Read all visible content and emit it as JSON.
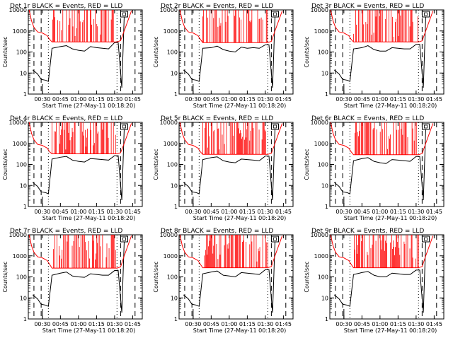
{
  "figure": {
    "colors": {
      "events": "#000000",
      "lld": "#ff0000",
      "background": "#ffffff",
      "axes": "#000000"
    },
    "x_tick_labels": [
      "00:30",
      "00:45",
      "01:00",
      "01:15",
      "01:30",
      "01:45"
    ],
    "y_tick_labels": [
      "1",
      "10",
      "100",
      "1000",
      "10000"
    ],
    "ylabel": "Counts/sec",
    "xlabel": "Start Time (27-May-11 00:18:20)",
    "icon": "attenuator-box-icon"
  },
  "chart_data": [
    {
      "type": "line",
      "title": "Det 1r BLACK = Events, RED = LLD",
      "xlabel": "Start Time (27-May-11 00:18:20)",
      "ylabel": "Counts/sec",
      "yscale": "log",
      "ylim": [
        1,
        10000
      ],
      "xlim_minutes": [
        18.33,
        113
      ],
      "xticks_minutes": [
        30,
        45,
        60,
        75,
        90,
        105
      ],
      "series": [
        {
          "name": "Events",
          "color": "black",
          "x_minutes": [
            22,
            26,
            29,
            33,
            35,
            38,
            45,
            50,
            55,
            60,
            65,
            70,
            75,
            80,
            85,
            90,
            93,
            96,
            98,
            100
          ],
          "values": [
            14,
            9,
            5,
            4.5,
            4,
            150,
            180,
            200,
            140,
            120,
            110,
            180,
            160,
            150,
            140,
            280,
            280,
            2,
            5000,
            9000
          ]
        },
        {
          "name": "LLD",
          "color": "red",
          "x_minutes": [
            19,
            21,
            23,
            26,
            30,
            34,
            36,
            38,
            45,
            60,
            75,
            90,
            92,
            95,
            98,
            101,
            104
          ],
          "values": [
            10000,
            3000,
            1500,
            900,
            800,
            600,
            400,
            300,
            300,
            300,
            300,
            300,
            300,
            350,
            1000,
            3000,
            9000
          ],
          "spike_peak": 10000
        }
      ],
      "vlines_dashed_minutes": [
        23,
        29,
        95,
        107
      ],
      "vlines_dotted_minutes": [
        35,
        92
      ]
    },
    {
      "type": "line",
      "title": "Det 2r BLACK = Events, RED = LLD",
      "xlabel": "Start Time (27-May-11 00:18:20)",
      "ylabel": "Counts/sec",
      "yscale": "log",
      "ylim": [
        1,
        10000
      ],
      "xlim_minutes": [
        18.33,
        113
      ],
      "xticks_minutes": [
        30,
        45,
        60,
        75,
        90,
        105
      ],
      "series": [
        {
          "name": "Events",
          "color": "black",
          "x_minutes": [
            22,
            26,
            29,
            33,
            35,
            38,
            45,
            50,
            55,
            60,
            65,
            70,
            75,
            80,
            85,
            90,
            93,
            96,
            98,
            100
          ],
          "values": [
            14,
            9,
            5,
            4.5,
            4,
            150,
            160,
            190,
            130,
            110,
            100,
            170,
            150,
            160,
            150,
            220,
            220,
            2,
            5000,
            9000
          ]
        },
        {
          "name": "LLD",
          "color": "red",
          "x_minutes": [
            19,
            21,
            23,
            26,
            30,
            34,
            36,
            38,
            45,
            60,
            75,
            90,
            92,
            95,
            98,
            101,
            104
          ],
          "values": [
            10000,
            3000,
            1500,
            900,
            800,
            600,
            400,
            280,
            280,
            280,
            280,
            280,
            280,
            320,
            1000,
            3000,
            9000
          ],
          "spike_peak": 10000
        }
      ],
      "vlines_dashed_minutes": [
        23,
        29,
        95,
        107
      ],
      "vlines_dotted_minutes": [
        35,
        92
      ]
    },
    {
      "type": "line",
      "title": "Det 3r BLACK = Events, RED = LLD",
      "xlabel": "Start Time (27-May-11 00:18:20)",
      "ylabel": "Counts/sec",
      "yscale": "log",
      "ylim": [
        1,
        10000
      ],
      "xlim_minutes": [
        18.33,
        113
      ],
      "xticks_minutes": [
        30,
        45,
        60,
        75,
        90,
        105
      ],
      "series": [
        {
          "name": "Events",
          "color": "black",
          "x_minutes": [
            22,
            26,
            29,
            33,
            35,
            38,
            45,
            50,
            55,
            60,
            65,
            70,
            75,
            80,
            85,
            90,
            93,
            96,
            98,
            100
          ],
          "values": [
            14,
            9,
            5,
            4.5,
            4,
            140,
            160,
            200,
            130,
            110,
            110,
            160,
            150,
            140,
            140,
            230,
            230,
            2,
            5000,
            9000
          ]
        },
        {
          "name": "LLD",
          "color": "red",
          "x_minutes": [
            19,
            21,
            23,
            26,
            30,
            34,
            36,
            38,
            45,
            60,
            75,
            90,
            92,
            95,
            98,
            101,
            104
          ],
          "values": [
            10000,
            3000,
            1500,
            900,
            800,
            600,
            400,
            300,
            300,
            300,
            300,
            300,
            300,
            340,
            1000,
            3000,
            9000
          ],
          "spike_peak": 10000
        }
      ],
      "vlines_dashed_minutes": [
        23,
        29,
        95,
        107
      ],
      "vlines_dotted_minutes": [
        35,
        92
      ]
    },
    {
      "type": "line",
      "title": "Det 4r BLACK = Events, RED = LLD",
      "xlabel": "Start Time (27-May-11 00:18:20)",
      "ylabel": "Counts/sec",
      "yscale": "log",
      "ylim": [
        1,
        10000
      ],
      "xlim_minutes": [
        18.33,
        113
      ],
      "xticks_minutes": [
        30,
        45,
        60,
        75,
        90,
        105
      ],
      "series": [
        {
          "name": "Events",
          "color": "black",
          "x_minutes": [
            22,
            26,
            29,
            33,
            35,
            38,
            45,
            50,
            55,
            60,
            65,
            70,
            75,
            80,
            85,
            90,
            93,
            96,
            98,
            100
          ],
          "values": [
            14,
            9,
            5,
            4.5,
            4,
            180,
            220,
            240,
            160,
            140,
            130,
            190,
            180,
            170,
            160,
            260,
            260,
            2,
            5000,
            9000
          ]
        },
        {
          "name": "LLD",
          "color": "red",
          "x_minutes": [
            19,
            21,
            23,
            26,
            30,
            34,
            36,
            38,
            45,
            60,
            75,
            90,
            92,
            95,
            98,
            101,
            104
          ],
          "values": [
            10000,
            3000,
            1500,
            900,
            800,
            600,
            400,
            320,
            320,
            320,
            320,
            320,
            320,
            360,
            1000,
            3000,
            9000
          ],
          "spike_peak": 10000
        }
      ],
      "vlines_dashed_minutes": [
        23,
        29,
        95,
        107
      ],
      "vlines_dotted_minutes": [
        35,
        92
      ]
    },
    {
      "type": "line",
      "title": "Det 5r BLACK = Events, RED = LLD",
      "xlabel": "Start Time (27-May-11 00:18:20)",
      "ylabel": "Counts/sec",
      "yscale": "log",
      "ylim": [
        1,
        10000
      ],
      "xlim_minutes": [
        18.33,
        113
      ],
      "xticks_minutes": [
        30,
        45,
        60,
        75,
        90,
        105
      ],
      "series": [
        {
          "name": "Events",
          "color": "black",
          "x_minutes": [
            22,
            26,
            29,
            33,
            35,
            38,
            45,
            50,
            55,
            60,
            65,
            70,
            75,
            80,
            85,
            90,
            93,
            96,
            98,
            100
          ],
          "values": [
            14,
            9,
            5,
            4.5,
            4,
            170,
            210,
            230,
            150,
            130,
            120,
            180,
            170,
            160,
            150,
            250,
            250,
            2,
            5000,
            9000
          ]
        },
        {
          "name": "LLD",
          "color": "red",
          "x_minutes": [
            19,
            21,
            23,
            26,
            30,
            34,
            36,
            38,
            45,
            60,
            75,
            90,
            92,
            95,
            98,
            101,
            104
          ],
          "values": [
            10000,
            3000,
            1500,
            900,
            800,
            600,
            400,
            300,
            300,
            300,
            300,
            300,
            300,
            340,
            1000,
            3000,
            9000
          ],
          "spike_peak": 10000
        }
      ],
      "vlines_dashed_minutes": [
        23,
        29,
        95,
        107
      ],
      "vlines_dotted_minutes": [
        35,
        92
      ]
    },
    {
      "type": "line",
      "title": "Det 6r BLACK = Events, RED = LLD",
      "xlabel": "Start Time (27-May-11 00:18:20)",
      "ylabel": "Counts/sec",
      "yscale": "log",
      "ylim": [
        1,
        10000
      ],
      "xlim_minutes": [
        18.33,
        113
      ],
      "xticks_minutes": [
        30,
        45,
        60,
        75,
        90,
        105
      ],
      "series": [
        {
          "name": "Events",
          "color": "black",
          "x_minutes": [
            22,
            26,
            29,
            33,
            35,
            38,
            45,
            50,
            55,
            60,
            65,
            70,
            75,
            80,
            85,
            90,
            93,
            96,
            98,
            100
          ],
          "values": [
            14,
            9,
            5,
            4.5,
            4,
            150,
            190,
            210,
            140,
            120,
            110,
            170,
            160,
            150,
            140,
            240,
            240,
            2,
            5000,
            9000
          ]
        },
        {
          "name": "LLD",
          "color": "red",
          "x_minutes": [
            19,
            21,
            23,
            26,
            30,
            34,
            36,
            38,
            45,
            60,
            75,
            90,
            92,
            95,
            98,
            101,
            104
          ],
          "values": [
            10000,
            3000,
            1500,
            900,
            800,
            600,
            400,
            290,
            290,
            290,
            290,
            290,
            290,
            330,
            1000,
            3000,
            9000
          ],
          "spike_peak": 10000
        }
      ],
      "vlines_dashed_minutes": [
        23,
        29,
        95,
        107
      ],
      "vlines_dotted_minutes": [
        35,
        92
      ]
    },
    {
      "type": "line",
      "title": "Det 7r BLACK = Events, RED = LLD",
      "xlabel": "Start Time (27-May-11 00:18:20)",
      "ylabel": "Counts/sec",
      "yscale": "log",
      "ylim": [
        1,
        10000
      ],
      "xlim_minutes": [
        18.33,
        113
      ],
      "xticks_minutes": [
        30,
        45,
        60,
        75,
        90,
        105
      ],
      "series": [
        {
          "name": "Events",
          "color": "black",
          "x_minutes": [
            22,
            26,
            29,
            33,
            35,
            38,
            45,
            50,
            55,
            60,
            65,
            70,
            75,
            80,
            85,
            90,
            93,
            96,
            98,
            100
          ],
          "values": [
            14,
            9,
            5,
            4.5,
            4,
            120,
            150,
            170,
            110,
            100,
            95,
            140,
            130,
            120,
            120,
            200,
            200,
            2,
            5000,
            9000
          ]
        },
        {
          "name": "LLD",
          "color": "red",
          "x_minutes": [
            19,
            21,
            23,
            26,
            30,
            34,
            36,
            38,
            45,
            60,
            75,
            90,
            92,
            95,
            98,
            101,
            104
          ],
          "values": [
            10000,
            3000,
            1500,
            900,
            800,
            600,
            400,
            260,
            260,
            260,
            260,
            260,
            260,
            300,
            1000,
            3000,
            9000
          ],
          "spike_peak": 10000
        }
      ],
      "vlines_dashed_minutes": [
        23,
        29,
        95,
        107
      ],
      "vlines_dotted_minutes": [
        35,
        92
      ]
    },
    {
      "type": "line",
      "title": "Det 8r BLACK = Events, RED = LLD",
      "xlabel": "Start Time (27-May-11 00:18:20)",
      "ylabel": "Counts/sec",
      "yscale": "log",
      "ylim": [
        1,
        10000
      ],
      "xlim_minutes": [
        18.33,
        113
      ],
      "xticks_minutes": [
        30,
        45,
        60,
        75,
        90,
        105
      ],
      "series": [
        {
          "name": "Events",
          "color": "black",
          "x_minutes": [
            22,
            26,
            29,
            33,
            35,
            38,
            45,
            50,
            55,
            60,
            65,
            70,
            75,
            80,
            85,
            90,
            93,
            96,
            98,
            100
          ],
          "values": [
            14,
            9,
            5,
            4.5,
            4,
            140,
            170,
            190,
            120,
            110,
            100,
            160,
            150,
            140,
            130,
            220,
            220,
            2,
            5000,
            9000
          ]
        },
        {
          "name": "LLD",
          "color": "red",
          "x_minutes": [
            19,
            21,
            23,
            26,
            30,
            34,
            36,
            38,
            45,
            60,
            75,
            90,
            92,
            95,
            98,
            101,
            104
          ],
          "values": [
            10000,
            3000,
            1500,
            900,
            800,
            600,
            400,
            270,
            270,
            270,
            270,
            270,
            270,
            310,
            1000,
            3000,
            9000
          ],
          "spike_peak": 10000
        }
      ],
      "vlines_dashed_minutes": [
        23,
        29,
        95,
        107
      ],
      "vlines_dotted_minutes": [
        35,
        92
      ]
    },
    {
      "type": "line",
      "title": "Det 9r BLACK = Events, RED = LLD",
      "xlabel": "Start Time (27-May-11 00:18:20)",
      "ylabel": "Counts/sec",
      "yscale": "log",
      "ylim": [
        1,
        10000
      ],
      "xlim_minutes": [
        18.33,
        113
      ],
      "xticks_minutes": [
        30,
        45,
        60,
        75,
        90,
        105
      ],
      "series": [
        {
          "name": "Events",
          "color": "black",
          "x_minutes": [
            22,
            26,
            29,
            33,
            35,
            38,
            45,
            50,
            55,
            60,
            65,
            70,
            75,
            80,
            85,
            90,
            93,
            96,
            98,
            100
          ],
          "values": [
            14,
            9,
            5,
            4.5,
            4,
            130,
            160,
            180,
            120,
            100,
            100,
            150,
            140,
            130,
            130,
            210,
            210,
            2,
            5000,
            9000
          ]
        },
        {
          "name": "LLD",
          "color": "red",
          "x_minutes": [
            19,
            21,
            23,
            26,
            30,
            34,
            36,
            38,
            45,
            60,
            75,
            90,
            92,
            95,
            98,
            101,
            104
          ],
          "values": [
            10000,
            3000,
            1500,
            900,
            800,
            600,
            400,
            270,
            270,
            270,
            270,
            270,
            270,
            310,
            1000,
            3000,
            9000
          ],
          "spike_peak": 10000
        }
      ],
      "vlines_dashed_minutes": [
        23,
        29,
        95,
        107
      ],
      "vlines_dotted_minutes": [
        35,
        92
      ]
    }
  ]
}
